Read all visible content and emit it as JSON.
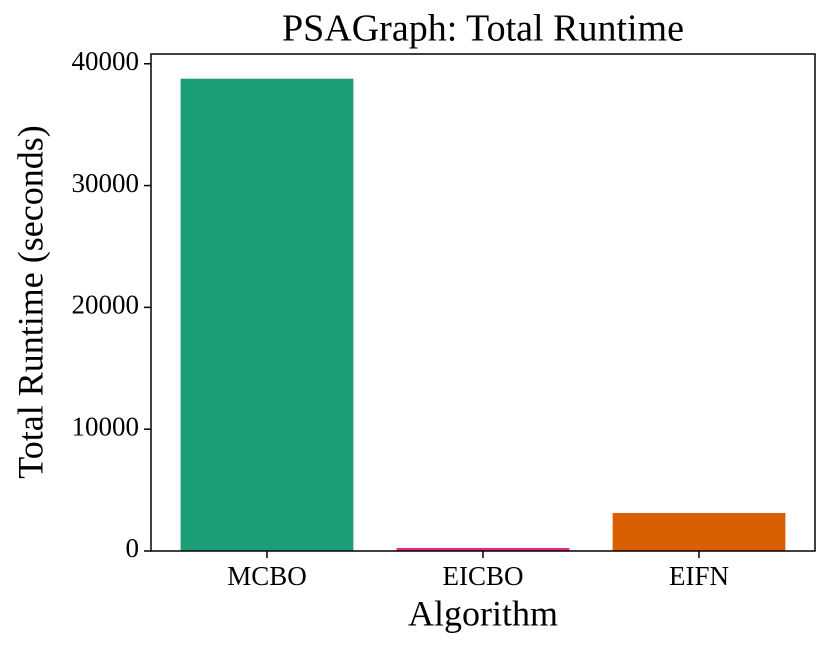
{
  "chart_data": {
    "type": "bar",
    "title": "PSAGraph: Total Runtime",
    "xlabel": "Algorithm",
    "ylabel": "Total Runtime (seconds)",
    "categories": [
      "MCBO",
      "EICBO",
      "EIFN"
    ],
    "values": [
      38770,
      250,
      3120
    ],
    "colors": [
      "#1b9e77",
      "#e7298a",
      "#d95f02"
    ],
    "ylim": [
      0,
      40800
    ],
    "yticks": [
      0,
      10000,
      20000,
      30000,
      40000
    ],
    "grid": false
  }
}
